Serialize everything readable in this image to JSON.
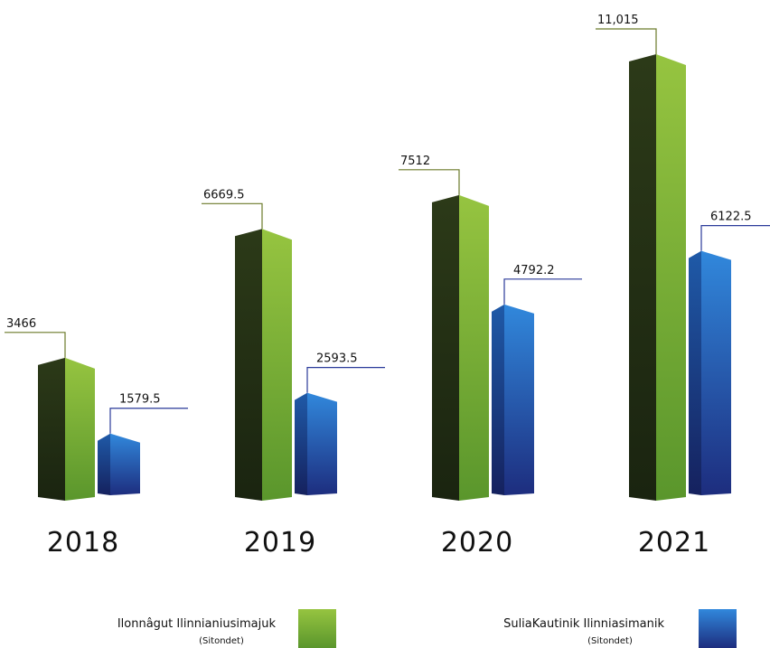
{
  "chart_data": {
    "type": "bar3d",
    "categories": [
      "2018",
      "2019",
      "2020",
      "2021"
    ],
    "series": [
      {
        "name": "Ilonnâgut Ilinnianiusimajuk",
        "sublabel": "(Sitondet)",
        "color": "#7fb23a",
        "values": [
          3466,
          6669.5,
          7512,
          11015
        ],
        "value_labels": [
          "3466",
          "6669.5",
          "7512",
          "11,015"
        ]
      },
      {
        "name": "SuliaKautinik Ilinniasimanik",
        "sublabel": "(Sitondet)",
        "color": "#2a6fc9",
        "values": [
          1579.5,
          2593.5,
          4792.2,
          6122.5
        ],
        "value_labels": [
          "1579.5",
          "2593.5",
          "4792.2",
          "6122.5"
        ]
      }
    ]
  }
}
